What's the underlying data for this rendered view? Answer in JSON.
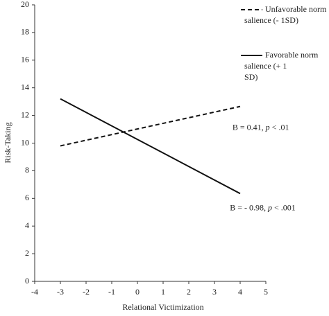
{
  "chart_data": {
    "type": "line",
    "x_label": "Relational Victimization",
    "y_label": "Risk-Taking",
    "x": [
      -3,
      4
    ],
    "series": [
      {
        "name": "Unfavorable norm salience (- 1SD)",
        "color": "#111111",
        "dash": true,
        "values": [
          9.8,
          12.65
        ]
      },
      {
        "name": "Favorable norm salience (+ 1 SD)",
        "color": "#111111",
        "dash": false,
        "values": [
          13.2,
          6.35
        ]
      }
    ],
    "annotations": [
      {
        "segments": [
          "B = 0.41, ",
          "p",
          " < .01"
        ],
        "x": 3.7,
        "y": 11.1
      },
      {
        "segments": [
          "B = - 0.98, ",
          "p",
          " < .001"
        ],
        "x": 3.6,
        "y": 5.3
      }
    ],
    "xlim": [
      -4,
      5
    ],
    "xticks": [
      -4,
      -3,
      -2,
      -1,
      0,
      1,
      2,
      3,
      4,
      5
    ],
    "ylim": [
      0,
      20
    ],
    "yticks": [
      0,
      2,
      4,
      6,
      8,
      10,
      12,
      14,
      16,
      18,
      20
    ],
    "grid": false,
    "legend": "top-right"
  }
}
